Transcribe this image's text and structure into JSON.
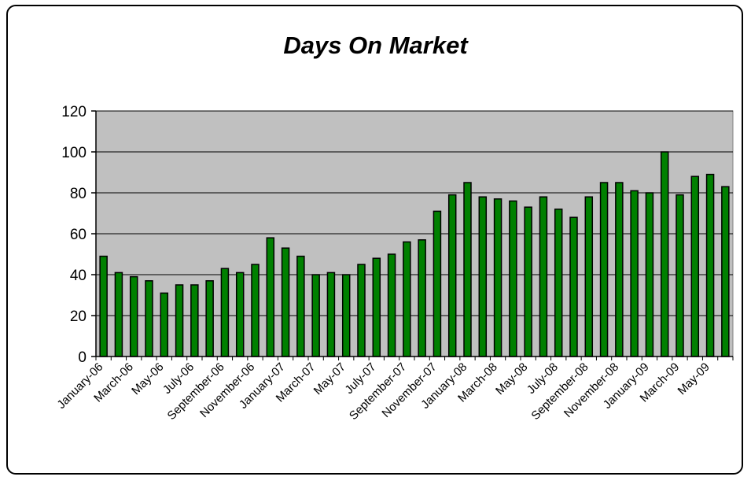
{
  "chart_data": {
    "type": "bar",
    "title": "Days On Market",
    "xlabel": "",
    "ylabel": "",
    "ylim": [
      0,
      120
    ],
    "yticks": [
      0,
      20,
      40,
      60,
      80,
      100,
      120
    ],
    "grid": true,
    "legend": "none",
    "colors": {
      "bar": "#008000",
      "plot_bg": "#c0c0c0",
      "grid": "#000000"
    },
    "categories": [
      "January-06",
      "February-06",
      "March-06",
      "April-06",
      "May-06",
      "June-06",
      "July-06",
      "August-06",
      "September-06",
      "October-06",
      "November-06",
      "December-06",
      "January-07",
      "February-07",
      "March-07",
      "April-07",
      "May-07",
      "June-07",
      "July-07",
      "August-07",
      "September-07",
      "October-07",
      "November-07",
      "December-07",
      "January-08",
      "February-08",
      "March-08",
      "April-08",
      "May-08",
      "June-08",
      "July-08",
      "August-08",
      "September-08",
      "October-08",
      "November-08",
      "December-08",
      "January-09",
      "February-09",
      "March-09",
      "April-09",
      "May-09",
      "June-09"
    ],
    "x_tick_labels": [
      "January-06",
      "March-06",
      "May-06",
      "July-06",
      "September-06",
      "November-06",
      "January-07",
      "March-07",
      "May-07",
      "July-07",
      "September-07",
      "November-07",
      "January-08",
      "March-08",
      "May-08",
      "July-08",
      "September-08",
      "November-08",
      "January-09",
      "March-09",
      "May-09"
    ],
    "values": [
      49,
      41,
      39,
      37,
      31,
      35,
      35,
      37,
      43,
      41,
      45,
      58,
      53,
      49,
      40,
      41,
      40,
      45,
      48,
      50,
      56,
      57,
      71,
      79,
      85,
      78,
      77,
      76,
      73,
      78,
      72,
      68,
      78,
      85,
      85,
      81,
      80,
      100,
      79,
      88,
      89,
      83
    ]
  }
}
